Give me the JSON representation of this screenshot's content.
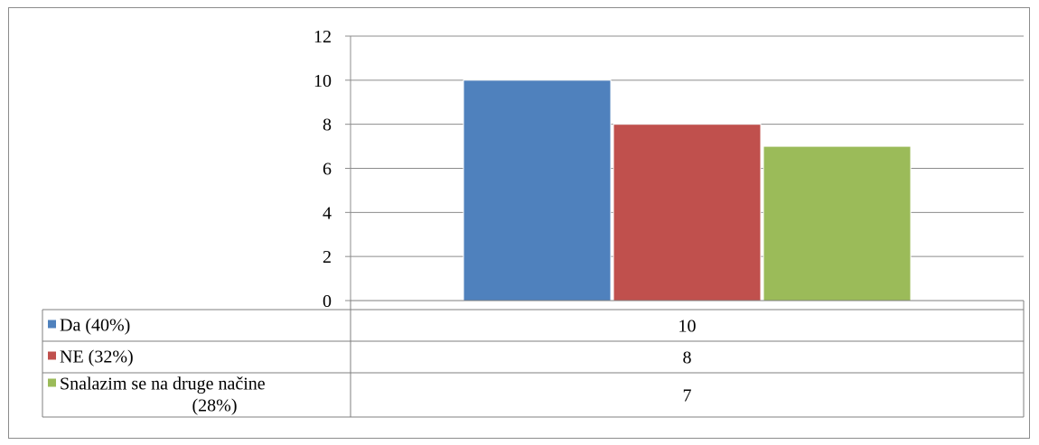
{
  "chart_data": {
    "type": "bar",
    "title": "",
    "xlabel": "",
    "ylabel": "",
    "ylim": [
      0,
      12
    ],
    "yticks": [
      0,
      2,
      4,
      6,
      8,
      10,
      12
    ],
    "grid": true,
    "series": [
      {
        "name": "Da (40%)",
        "values": [
          10
        ],
        "color": "#4f81bd"
      },
      {
        "name": "NE (32%)",
        "values": [
          8
        ],
        "color": "#c0504d"
      },
      {
        "name": "Snalazim se na druge načine (28%)",
        "values": [
          7
        ],
        "color": "#9bbb59"
      }
    ],
    "data_table": {
      "rows": [
        {
          "label_lines": [
            "Da (40%)"
          ],
          "value": "10"
        },
        {
          "label_lines": [
            "NE (32%)"
          ],
          "value": "8"
        },
        {
          "label_lines": [
            "Snalazim se na druge načine",
            "(28%)"
          ],
          "value": "7"
        }
      ]
    }
  },
  "colors": {
    "gridline": "#8c8c8c",
    "frame": "#8c8c8c",
    "table_border": "#7f7f7f"
  }
}
